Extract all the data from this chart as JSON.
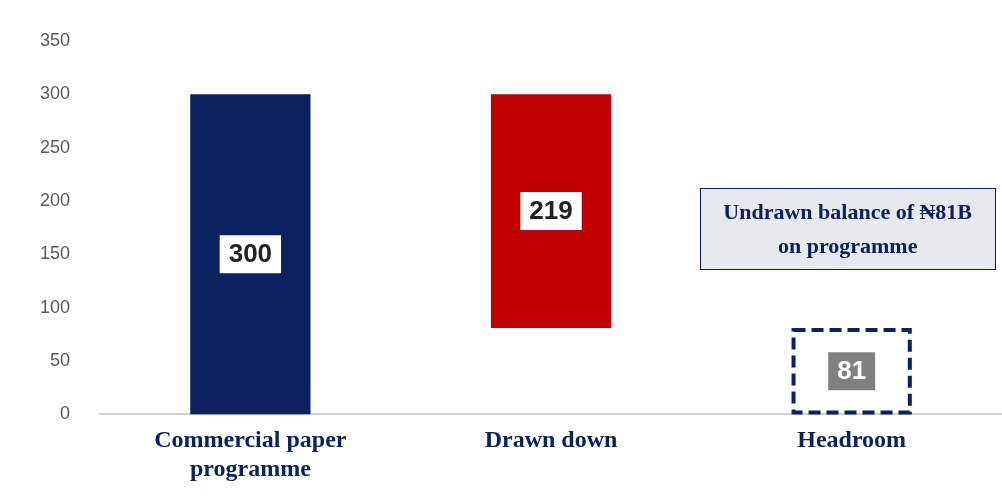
{
  "chart_data": {
    "type": "bar",
    "categories": [
      "Commercial paper programme",
      "Drawn down",
      "Headroom"
    ],
    "series": [
      {
        "color": "#0c2160",
        "values": [
          300,
          null,
          null
        ],
        "base": [
          0,
          null,
          null
        ]
      },
      {
        "color": "#c00000",
        "values": [
          null,
          219,
          null
        ],
        "base": [
          null,
          81,
          null
        ]
      },
      {
        "color": "#0c2160",
        "values": [
          null,
          null,
          81
        ],
        "base": [
          null,
          null,
          0
        ],
        "line_style": "dashed"
      }
    ],
    "ylim": [
      0,
      350
    ],
    "yticks": [
      0,
      50,
      100,
      150,
      200,
      250,
      300,
      350
    ],
    "grid": false,
    "legend": false,
    "data_labels": true,
    "annotations": [
      "Undrawn balance of ₦81B on programme"
    ]
  }
}
